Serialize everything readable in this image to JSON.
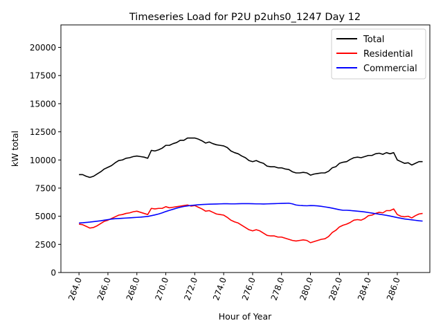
{
  "chart_data": {
    "type": "line",
    "title": "Timeseries Load for P2U p2uhs0_1247  Day 12",
    "xlabel": "Hour of Year",
    "ylabel": "kW total",
    "xlim": [
      262.75,
      288.25
    ],
    "ylim": [
      0,
      22000
    ],
    "xticks": [
      264,
      266,
      268,
      270,
      272,
      274,
      276,
      278,
      280,
      282,
      284,
      286
    ],
    "xtick_labels": [
      "264.0",
      "266.0",
      "268.0",
      "270.0",
      "272.0",
      "274.0",
      "276.0",
      "278.0",
      "280.0",
      "282.0",
      "284.0",
      "286.0"
    ],
    "yticks": [
      0,
      2500,
      5000,
      7500,
      10000,
      12500,
      15000,
      17500,
      20000
    ],
    "ytick_labels": [
      "0",
      "2500",
      "5000",
      "7500",
      "10000",
      "12500",
      "15000",
      "17500",
      "20000"
    ],
    "legend_position": "top-right",
    "x_start": 264.0,
    "x_step": 0.25,
    "series": [
      {
        "name": "Total",
        "color": "#000000",
        "values": [
          8700,
          8700,
          8550,
          8450,
          8550,
          8750,
          8950,
          9200,
          9350,
          9500,
          9750,
          9950,
          10000,
          10150,
          10200,
          10300,
          10350,
          10300,
          10250,
          10150,
          10850,
          10800,
          10900,
          11050,
          11300,
          11300,
          11450,
          11550,
          11750,
          11750,
          11950,
          11950,
          11950,
          11850,
          11700,
          11500,
          11600,
          11450,
          11350,
          11300,
          11250,
          11100,
          10800,
          10650,
          10550,
          10350,
          10200,
          9950,
          9850,
          9950,
          9800,
          9700,
          9450,
          9400,
          9400,
          9300,
          9300,
          9200,
          9150,
          8950,
          8850,
          8850,
          8900,
          8850,
          8650,
          8750,
          8800,
          8850,
          8850,
          9000,
          9300,
          9400,
          9700,
          9800,
          9850,
          10050,
          10200,
          10250,
          10200,
          10300,
          10400,
          10400,
          10550,
          10600,
          10500,
          10650,
          10550,
          10650,
          10000,
          9850,
          9700,
          9750,
          9550,
          9700,
          9850,
          9850
        ]
      },
      {
        "name": "Residential",
        "color": "#ff0000",
        "values": [
          4300,
          4250,
          4100,
          3950,
          4000,
          4150,
          4350,
          4550,
          4650,
          4800,
          4950,
          5100,
          5150,
          5250,
          5300,
          5400,
          5450,
          5350,
          5250,
          5150,
          5700,
          5650,
          5700,
          5700,
          5850,
          5750,
          5800,
          5850,
          5900,
          5950,
          6000,
          5900,
          5950,
          5800,
          5650,
          5450,
          5500,
          5350,
          5200,
          5150,
          5100,
          4900,
          4650,
          4500,
          4400,
          4200,
          4000,
          3800,
          3700,
          3800,
          3700,
          3500,
          3300,
          3250,
          3250,
          3150,
          3150,
          3050,
          2950,
          2850,
          2800,
          2850,
          2900,
          2850,
          2650,
          2750,
          2850,
          2950,
          3000,
          3200,
          3550,
          3750,
          4050,
          4200,
          4300,
          4450,
          4650,
          4700,
          4650,
          4800,
          5050,
          5100,
          5250,
          5350,
          5300,
          5500,
          5500,
          5650,
          5150,
          5000,
          4950,
          5000,
          4850,
          5050,
          5200,
          5250
        ]
      },
      {
        "name": "Commercial",
        "color": "#0000ff",
        "values": [
          4400,
          4420,
          4450,
          4480,
          4520,
          4560,
          4600,
          4650,
          4700,
          4750,
          4780,
          4800,
          4820,
          4840,
          4860,
          4880,
          4900,
          4920,
          4950,
          4980,
          5050,
          5120,
          5200,
          5300,
          5420,
          5520,
          5620,
          5720,
          5800,
          5870,
          5920,
          5960,
          5990,
          6020,
          6040,
          6060,
          6070,
          6080,
          6090,
          6100,
          6110,
          6110,
          6100,
          6100,
          6110,
          6120,
          6120,
          6120,
          6110,
          6100,
          6100,
          6090,
          6100,
          6110,
          6120,
          6130,
          6140,
          6150,
          6160,
          6100,
          6000,
          5960,
          5940,
          5930,
          5950,
          5940,
          5920,
          5880,
          5830,
          5780,
          5720,
          5650,
          5580,
          5530,
          5530,
          5510,
          5480,
          5450,
          5420,
          5380,
          5330,
          5280,
          5230,
          5180,
          5130,
          5080,
          5020,
          4950,
          4880,
          4820,
          4760,
          4720,
          4680,
          4640,
          4600,
          4570
        ]
      }
    ]
  }
}
